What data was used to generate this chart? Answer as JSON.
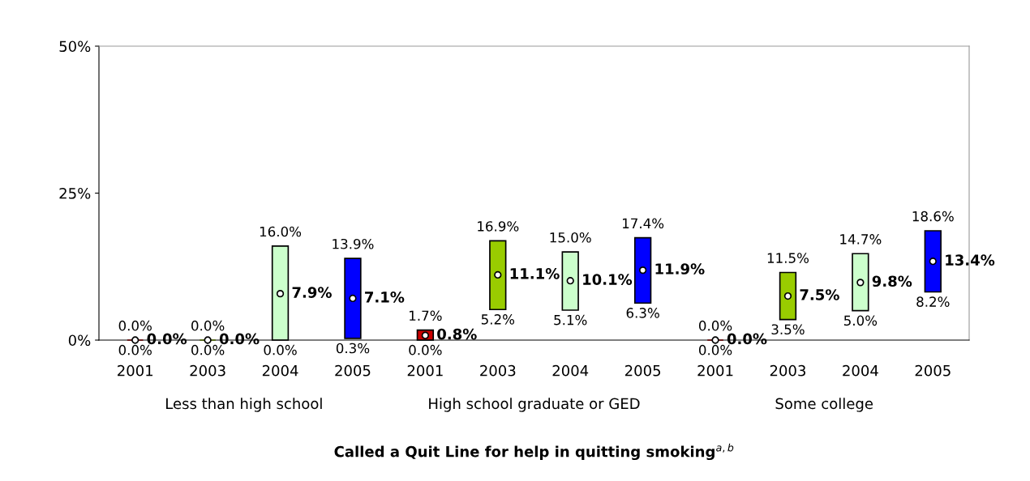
{
  "chart_data": {
    "type": "bar",
    "title": "Called a Quit Line for help in quitting smoking$^{a,b}$",
    "categories": [
      "2001",
      "2003",
      "2004",
      "2005",
      "2001",
      "2003",
      "2004",
      "2005",
      "2001",
      "2003",
      "2004",
      "2005"
    ],
    "series": [
      {
        "base": [
          0.0,
          0.0,
          0.0,
          0.3,
          0.0,
          5.2,
          5.1,
          6.3,
          0.0,
          3.5,
          5.0,
          8.2
        ],
        "values": [
          0.0,
          0.0,
          16.0,
          13.6,
          1.7,
          11.7,
          9.9,
          11.1,
          0.0,
          8.0,
          9.7,
          10.4
        ],
        "colors": [
          "#cc0000",
          "#99cc00",
          "#ccffcc",
          "#0000ff",
          "#cc0000",
          "#99cc00",
          "#ccffcc",
          "#0000ff",
          "#cc0000",
          "#99cc00",
          "#ccffcc",
          "#0000ff"
        ],
        "value_labels": [
          "0.0%",
          "0.0%",
          "16.0%",
          "13.9%",
          "1.7%",
          "16.9%",
          "15.0%",
          "17.4%",
          "0.0%",
          "11.5%",
          "14.7%",
          "18.6%"
        ]
      },
      {
        "type": "scatter",
        "marker": "circle",
        "color": "#ffffff",
        "values": [
          0.0,
          0.0,
          7.9,
          7.1,
          0.8,
          11.1,
          10.1,
          11.9,
          0.0,
          7.5,
          9.8,
          13.4
        ],
        "value_labels": [
          "0.0%",
          "0.0%",
          "7.9%",
          "7.1%",
          "0.8%",
          "11.1%",
          "10.1%",
          "11.9%",
          "0.0%",
          "7.5%",
          "9.8%",
          "13.4%"
        ]
      }
    ],
    "ylim": [
      0,
      50
    ],
    "yticks": [
      {
        "value": 0,
        "label": "0%"
      },
      {
        "value": 25,
        "label": "25%"
      },
      {
        "value": 50,
        "label": "50%"
      }
    ],
    "annotations": [
      "Less than high school",
      "High school graduate or GED",
      "Some college",
      "0.0%",
      "0.0%",
      "0.0%",
      "0.3%",
      "0.0%",
      "5.2%",
      "5.1%",
      "6.3%",
      "0.0%",
      "3.5%",
      "5.0%",
      "8.2%"
    ],
    "grid": false
  }
}
